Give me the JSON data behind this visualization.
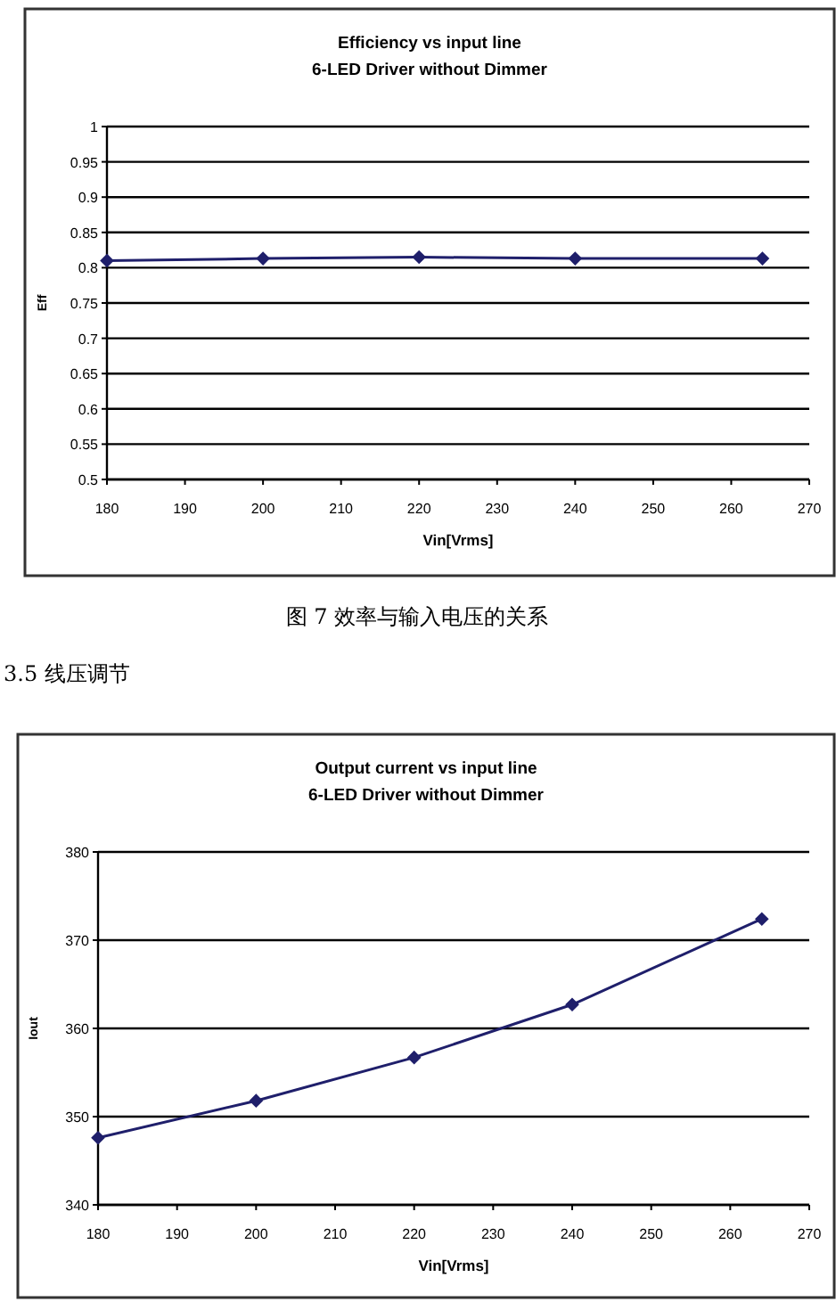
{
  "chart_data": [
    {
      "type": "line",
      "title": "Efficiency vs input line",
      "subtitle": "6-LED Driver without Dimmer",
      "xlabel": "Vin[Vrms]",
      "ylabel": "Eff",
      "annotations": [
        "图 7 效率与输入电压的关系"
      ],
      "x": [
        180,
        200,
        220,
        240,
        264
      ],
      "series": [
        {
          "color": "#1f1f6b",
          "values": [
            0.81,
            0.813,
            0.815,
            0.813,
            0.813
          ]
        }
      ],
      "xlim": [
        180,
        270
      ],
      "xticks": [
        180,
        190,
        200,
        210,
        220,
        230,
        240,
        250,
        260,
        270
      ],
      "ylim": [
        0.5,
        1
      ],
      "yticks": [
        0.5,
        0.55,
        0.6,
        0.65,
        0.7,
        0.75,
        0.8,
        0.85,
        0.9,
        0.95,
        1
      ],
      "grid": "y",
      "marker": "diamond",
      "line_style": "solid"
    },
    {
      "type": "line",
      "title": "Output current vs input line",
      "subtitle": "6-LED Driver without Dimmer",
      "xlabel": "Vin[Vrms]",
      "ylabel": "Iout",
      "annotations": [
        "3.5 线压调节"
      ],
      "x": [
        180,
        200,
        220,
        240,
        264
      ],
      "series": [
        {
          "color": "#1f1f6b",
          "values": [
            347.6,
            351.8,
            356.7,
            362.7,
            372.4
          ]
        }
      ],
      "xlim": [
        180,
        270
      ],
      "xticks": [
        180,
        190,
        200,
        210,
        220,
        230,
        240,
        250,
        260,
        270
      ],
      "ylim": [
        340,
        380
      ],
      "yticks": [
        340,
        350,
        360,
        370,
        380
      ],
      "grid": "y",
      "marker": "diamond",
      "line_style": "solid"
    }
  ]
}
